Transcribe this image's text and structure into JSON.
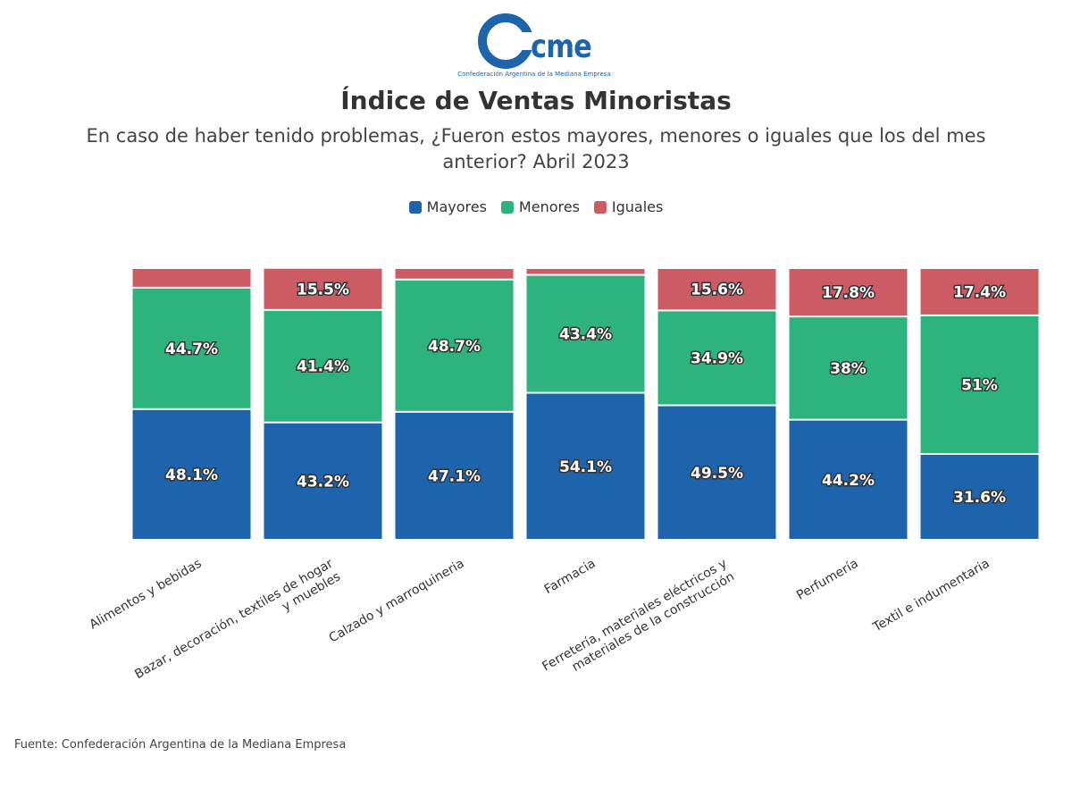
{
  "logo": {
    "mark": "cme",
    "caption": "Confederación Argentina de la Mediana Empresa"
  },
  "chart_data": {
    "type": "stacked_bar",
    "title": "Índice de Ventas Minoristas",
    "subtitle": "En caso de haber tenido problemas, ¿Fueron estos mayores, menores o iguales que los del mes anterior? Abril 2023",
    "categories": [
      "Alimentos y bebidas",
      "Bazar, decoración, textiles de hogar y muebles",
      "Calzado y marroquineria",
      "Farmacia",
      "Ferretería, materiales eléctricos y materiales de la construcción",
      "Perfumería",
      "Textil e indumentaria"
    ],
    "series": [
      {
        "name": "Mayores",
        "color": "#1d64ad",
        "values": [
          48.1,
          43.2,
          47.1,
          54.1,
          49.5,
          44.2,
          31.6
        ],
        "value_labels": [
          "48.1%",
          "43.2%",
          "47.1%",
          "54.1%",
          "49.5%",
          "44.2%",
          "31.6%"
        ]
      },
      {
        "name": "Menores",
        "color": "#2db37e",
        "values": [
          44.7,
          41.4,
          48.7,
          43.4,
          34.9,
          38,
          51
        ],
        "value_labels": [
          "44.7%",
          "41.4%",
          "48.7%",
          "43.4%",
          "34.9%",
          "38%",
          "51%"
        ]
      },
      {
        "name": "Iguales",
        "color": "#cc5b63",
        "values": [
          7.2,
          15.5,
          4.2,
          2.5,
          15.6,
          17.8,
          17.4
        ],
        "value_labels": [
          null,
          "15.5%",
          null,
          null,
          "15.6%",
          "17.8%",
          "17.4%"
        ]
      }
    ],
    "ylim": [
      0,
      100
    ],
    "source": "Fuente: Confederación Argentina de la Mediana Empresa"
  }
}
